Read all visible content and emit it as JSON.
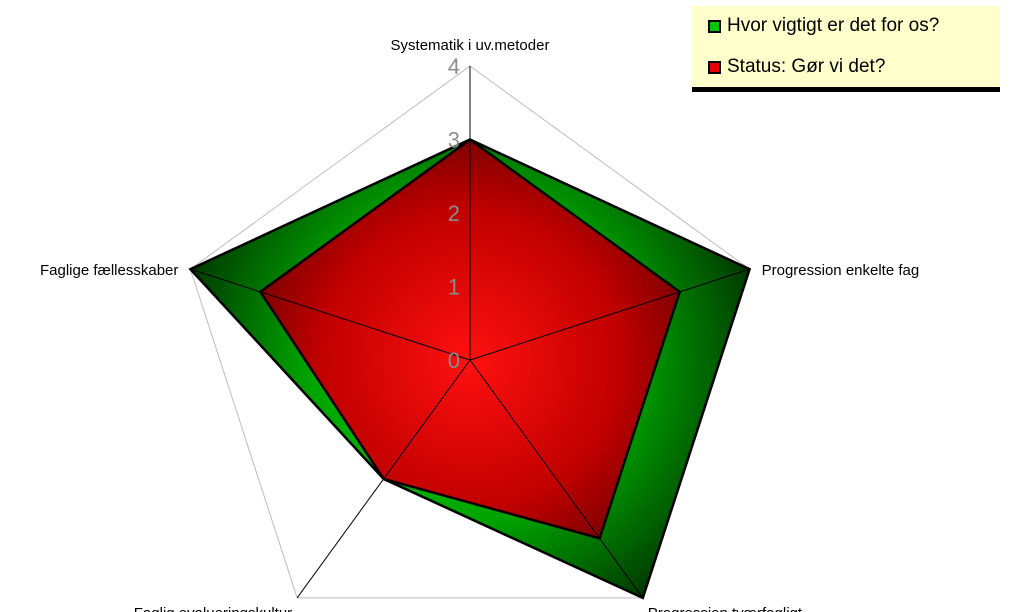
{
  "chart_data": {
    "type": "radar",
    "categories": [
      "Systematik i uv.metoder",
      "Progression enkelte fag",
      "Progression tværfagligt",
      "Faglig evalueringskultur",
      "Faglige fællesskaber"
    ],
    "series": [
      {
        "name": "Hvor vigtigt er det for os?",
        "values": [
          3,
          4,
          4,
          2,
          4
        ],
        "color": "#00a000"
      },
      {
        "name": "Status: Gør vi det?",
        "values": [
          3,
          3,
          3,
          2,
          3
        ],
        "color": "#cc0000"
      }
    ],
    "rlim": [
      0,
      4
    ],
    "ticks": [
      "0",
      "1",
      "2",
      "3",
      "4"
    ],
    "grid": true,
    "legend_position": "top-right"
  }
}
